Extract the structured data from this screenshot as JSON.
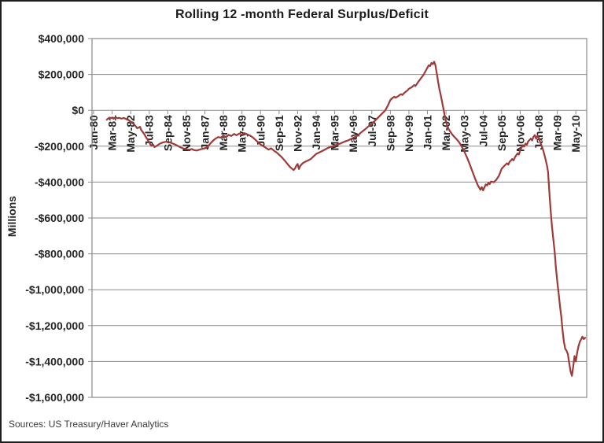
{
  "title": "Rolling 12 -month Federal Surplus/Deficit",
  "y_axis_title": "Millions",
  "source_note": "Sources: US Treasury/Haver Analytics",
  "colors": {
    "line": "#9e3a38",
    "grid": "#8a8a8a",
    "axis_text": "#262626",
    "outer_border": "#1f1f1f",
    "background": "#ffffff"
  },
  "chart_data": {
    "type": "line",
    "title": "Rolling 12 -month Federal Surplus/Deficit",
    "xlabel": "",
    "ylabel": "Millions",
    "unit": "millions of US dollars",
    "ylim": [
      -1600000,
      400000
    ],
    "grid": true,
    "legend": "none",
    "y_ticks": [
      {
        "value": 400000,
        "label": "$400,000"
      },
      {
        "value": 200000,
        "label": "$200,000"
      },
      {
        "value": 0,
        "label": "$0"
      },
      {
        "value": -200000,
        "label": "-$200,000"
      },
      {
        "value": -400000,
        "label": "-$400,000"
      },
      {
        "value": -600000,
        "label": "-$600,000"
      },
      {
        "value": -800000,
        "label": "-$800,000"
      },
      {
        "value": -1000000,
        "label": "-$1,000,000"
      },
      {
        "value": -1200000,
        "label": "-$1,200,000"
      },
      {
        "value": -1400000,
        "label": "-$1,400,000"
      },
      {
        "value": -1600000,
        "label": "-$1,600,000"
      }
    ],
    "x_unit": "months since Jan-1980",
    "x_range_months": [
      0,
      371
    ],
    "x_ticks": [
      {
        "month": 0,
        "label": "Jan-80"
      },
      {
        "month": 14,
        "label": "Mar-81"
      },
      {
        "month": 28,
        "label": "May-82"
      },
      {
        "month": 42,
        "label": "Jul-83"
      },
      {
        "month": 56,
        "label": "Sep-84"
      },
      {
        "month": 70,
        "label": "Nov-85"
      },
      {
        "month": 84,
        "label": "Jan-87"
      },
      {
        "month": 98,
        "label": "Mar-88"
      },
      {
        "month": 112,
        "label": "May-89"
      },
      {
        "month": 126,
        "label": "Jul-90"
      },
      {
        "month": 140,
        "label": "Sep-91"
      },
      {
        "month": 154,
        "label": "Nov-92"
      },
      {
        "month": 168,
        "label": "Jan-94"
      },
      {
        "month": 182,
        "label": "Mar-95"
      },
      {
        "month": 196,
        "label": "May-96"
      },
      {
        "month": 210,
        "label": "Jul-97"
      },
      {
        "month": 224,
        "label": "Sep-98"
      },
      {
        "month": 238,
        "label": "Nov-99"
      },
      {
        "month": 252,
        "label": "Jan-01"
      },
      {
        "month": 266,
        "label": "Mar-02"
      },
      {
        "month": 280,
        "label": "May-03"
      },
      {
        "month": 294,
        "label": "Jul-04"
      },
      {
        "month": 308,
        "label": "Sep-05"
      },
      {
        "month": 322,
        "label": "Nov-06"
      },
      {
        "month": 336,
        "label": "Jan-08"
      },
      {
        "month": 350,
        "label": "Mar-09"
      },
      {
        "month": 364,
        "label": "May-10"
      }
    ],
    "series": [
      {
        "name": "Rolling 12-month federal surplus/deficit",
        "color": "#9e3a38",
        "points": [
          [
            10,
            -52000
          ],
          [
            11,
            -46000
          ],
          [
            12,
            -41000
          ],
          [
            13,
            -44000
          ],
          [
            14,
            -40000
          ],
          [
            15,
            -47000
          ],
          [
            16,
            -43000
          ],
          [
            17,
            -40000
          ],
          [
            18,
            -44000
          ],
          [
            19,
            -42000
          ],
          [
            21,
            -46000
          ],
          [
            23,
            -43000
          ],
          [
            25,
            -50000
          ],
          [
            27,
            -57000
          ],
          [
            29,
            -68000
          ],
          [
            31,
            -82000
          ],
          [
            33,
            -100000
          ],
          [
            35,
            -92000
          ],
          [
            36,
            -110000
          ],
          [
            38,
            -130000
          ],
          [
            40,
            -155000
          ],
          [
            42,
            -178000
          ],
          [
            43,
            -192000
          ],
          [
            44,
            -198000
          ],
          [
            45,
            -192000
          ],
          [
            46,
            -205000
          ],
          [
            48,
            -196000
          ],
          [
            50,
            -186000
          ],
          [
            52,
            -180000
          ],
          [
            54,
            -176000
          ],
          [
            56,
            -176000
          ],
          [
            58,
            -180000
          ],
          [
            60,
            -186000
          ],
          [
            62,
            -192000
          ],
          [
            64,
            -200000
          ],
          [
            66,
            -208000
          ],
          [
            68,
            -213000
          ],
          [
            70,
            -216000
          ],
          [
            72,
            -220000
          ],
          [
            74,
            -216000
          ],
          [
            76,
            -222000
          ],
          [
            78,
            -224000
          ],
          [
            80,
            -219000
          ],
          [
            82,
            -215000
          ],
          [
            84,
            -212000
          ],
          [
            86,
            -204000
          ],
          [
            88,
            -186000
          ],
          [
            90,
            -170000
          ],
          [
            92,
            -158000
          ],
          [
            94,
            -149000
          ],
          [
            96,
            -152000
          ],
          [
            98,
            -141000
          ],
          [
            100,
            -149000
          ],
          [
            102,
            -137000
          ],
          [
            104,
            -143000
          ],
          [
            106,
            -132000
          ],
          [
            108,
            -139000
          ],
          [
            110,
            -129000
          ],
          [
            112,
            -136000
          ],
          [
            114,
            -127000
          ],
          [
            116,
            -134000
          ],
          [
            118,
            -141000
          ],
          [
            120,
            -150000
          ],
          [
            122,
            -163000
          ],
          [
            124,
            -177000
          ],
          [
            126,
            -191000
          ],
          [
            128,
            -199000
          ],
          [
            130,
            -209000
          ],
          [
            132,
            -219000
          ],
          [
            134,
            -212000
          ],
          [
            136,
            -224000
          ],
          [
            138,
            -234000
          ],
          [
            140,
            -247000
          ],
          [
            142,
            -261000
          ],
          [
            144,
            -278000
          ],
          [
            146,
            -296000
          ],
          [
            148,
            -314000
          ],
          [
            150,
            -327000
          ],
          [
            151,
            -333000
          ],
          [
            152,
            -324000
          ],
          [
            153,
            -309000
          ],
          [
            154,
            -299000
          ],
          [
            155,
            -327000
          ],
          [
            156,
            -309000
          ],
          [
            158,
            -294000
          ],
          [
            160,
            -286000
          ],
          [
            162,
            -279000
          ],
          [
            164,
            -271000
          ],
          [
            166,
            -257000
          ],
          [
            168,
            -243000
          ],
          [
            170,
            -236000
          ],
          [
            172,
            -229000
          ],
          [
            174,
            -221000
          ],
          [
            176,
            -213000
          ],
          [
            178,
            -206000
          ],
          [
            180,
            -201000
          ],
          [
            182,
            -197000
          ],
          [
            184,
            -191000
          ],
          [
            186,
            -186000
          ],
          [
            188,
            -179000
          ],
          [
            190,
            -173000
          ],
          [
            192,
            -168000
          ],
          [
            194,
            -161000
          ],
          [
            196,
            -153000
          ],
          [
            198,
            -146000
          ],
          [
            200,
            -136000
          ],
          [
            202,
            -123000
          ],
          [
            204,
            -111000
          ],
          [
            206,
            -99000
          ],
          [
            208,
            -86000
          ],
          [
            210,
            -75000
          ],
          [
            212,
            -61000
          ],
          [
            214,
            -46000
          ],
          [
            216,
            -31000
          ],
          [
            218,
            -16000
          ],
          [
            220,
            -2000
          ],
          [
            222,
            25000
          ],
          [
            224,
            58000
          ],
          [
            226,
            71000
          ],
          [
            227,
            76000
          ],
          [
            228,
            70000
          ],
          [
            230,
            80000
          ],
          [
            232,
            90000
          ],
          [
            233,
            86000
          ],
          [
            235,
            100000
          ],
          [
            237,
            112000
          ],
          [
            238,
            120000
          ],
          [
            240,
            128000
          ],
          [
            242,
            141000
          ],
          [
            243,
            136000
          ],
          [
            245,
            158000
          ],
          [
            247,
            178000
          ],
          [
            249,
            198000
          ],
          [
            251,
            224000
          ],
          [
            252,
            238000
          ],
          [
            253,
            251000
          ],
          [
            254,
            247000
          ],
          [
            255,
            264000
          ],
          [
            256,
            257000
          ],
          [
            257,
            271000
          ],
          [
            258,
            252000
          ],
          [
            259,
            208000
          ],
          [
            260,
            160000
          ],
          [
            261,
            118000
          ],
          [
            262,
            85000
          ],
          [
            263,
            48000
          ],
          [
            264,
            12000
          ],
          [
            265,
            -28000
          ],
          [
            266,
            -62000
          ],
          [
            267,
            -88000
          ],
          [
            268,
            -105000
          ],
          [
            270,
            -128000
          ],
          [
            272,
            -146000
          ],
          [
            274,
            -161000
          ],
          [
            276,
            -179000
          ],
          [
            278,
            -203000
          ],
          [
            280,
            -233000
          ],
          [
            282,
            -266000
          ],
          [
            284,
            -302000
          ],
          [
            286,
            -342000
          ],
          [
            288,
            -382000
          ],
          [
            290,
            -417000
          ],
          [
            291,
            -430000
          ],
          [
            292,
            -443000
          ],
          [
            293,
            -428000
          ],
          [
            294,
            -446000
          ],
          [
            295,
            -429000
          ],
          [
            296,
            -413000
          ],
          [
            297,
            -419000
          ],
          [
            298,
            -404000
          ],
          [
            299,
            -411000
          ],
          [
            300,
            -397000
          ],
          [
            302,
            -401000
          ],
          [
            304,
            -387000
          ],
          [
            306,
            -364000
          ],
          [
            308,
            -325000
          ],
          [
            310,
            -310000
          ],
          [
            312,
            -295000
          ],
          [
            313,
            -303000
          ],
          [
            314,
            -287000
          ],
          [
            316,
            -272000
          ],
          [
            317,
            -279000
          ],
          [
            318,
            -262000
          ],
          [
            320,
            -240000
          ],
          [
            321,
            -247000
          ],
          [
            322,
            -220000
          ],
          [
            324,
            -195000
          ],
          [
            325,
            -202000
          ],
          [
            326,
            -185000
          ],
          [
            327,
            -192000
          ],
          [
            328,
            -173000
          ],
          [
            330,
            -158000
          ],
          [
            331,
            -168000
          ],
          [
            332,
            -148000
          ],
          [
            333,
            -138000
          ],
          [
            334,
            -158000
          ],
          [
            335,
            -142000
          ],
          [
            336,
            -152000
          ],
          [
            337,
            -175000
          ],
          [
            338,
            -195000
          ],
          [
            339,
            -215000
          ],
          [
            340,
            -240000
          ],
          [
            341,
            -270000
          ],
          [
            342,
            -300000
          ],
          [
            343,
            -340000
          ],
          [
            344,
            -455000
          ],
          [
            345,
            -560000
          ],
          [
            346,
            -650000
          ],
          [
            347,
            -720000
          ],
          [
            348,
            -790000
          ],
          [
            349,
            -880000
          ],
          [
            350,
            -955000
          ],
          [
            351,
            -1020000
          ],
          [
            352,
            -1090000
          ],
          [
            353,
            -1150000
          ],
          [
            354,
            -1230000
          ],
          [
            355,
            -1290000
          ],
          [
            356,
            -1330000
          ],
          [
            357,
            -1340000
          ],
          [
            358,
            -1360000
          ],
          [
            359,
            -1410000
          ],
          [
            360,
            -1455000
          ],
          [
            361,
            -1480000
          ],
          [
            362,
            -1430000
          ],
          [
            363,
            -1370000
          ],
          [
            364,
            -1400000
          ],
          [
            365,
            -1350000
          ],
          [
            366,
            -1315000
          ],
          [
            367,
            -1290000
          ],
          [
            368,
            -1277000
          ],
          [
            369,
            -1262000
          ],
          [
            370,
            -1275000
          ],
          [
            371,
            -1268000
          ]
        ]
      }
    ]
  }
}
